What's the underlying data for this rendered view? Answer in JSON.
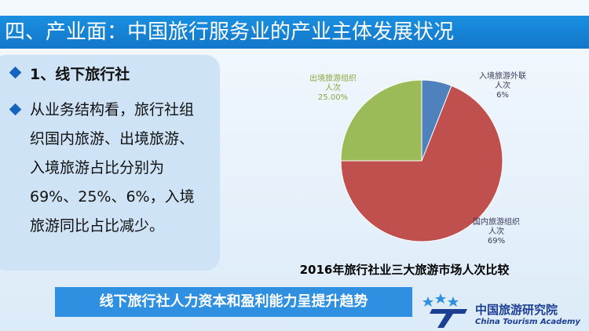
{
  "slide_title": "四、产业面：中国旅行服务业的产业主体发展状况",
  "bullets": [
    "1、线下旅行社",
    "从业务结构看，旅行社组织国内旅游、出境旅游、入境旅游占比分别为69%、25%、6%，入境旅游同比占比减少。"
  ],
  "chart_data": {
    "type": "pie",
    "title": "2016年旅行社业三大旅游市场人次比较",
    "categories": [
      "入境旅游外联人次",
      "国内旅游组织人次",
      "出境旅游组织人次"
    ],
    "values": [
      6,
      69,
      25
    ],
    "value_labels": [
      "6%",
      "69%",
      "25.00%"
    ],
    "colors": [
      "#4f81bd",
      "#c0504d",
      "#9bbb59"
    ]
  },
  "banner": "线下旅行社人力资本和盈利能力呈提升趋势",
  "logo": {
    "name": "中国旅游研究院",
    "english": "China Tourism Academy"
  }
}
